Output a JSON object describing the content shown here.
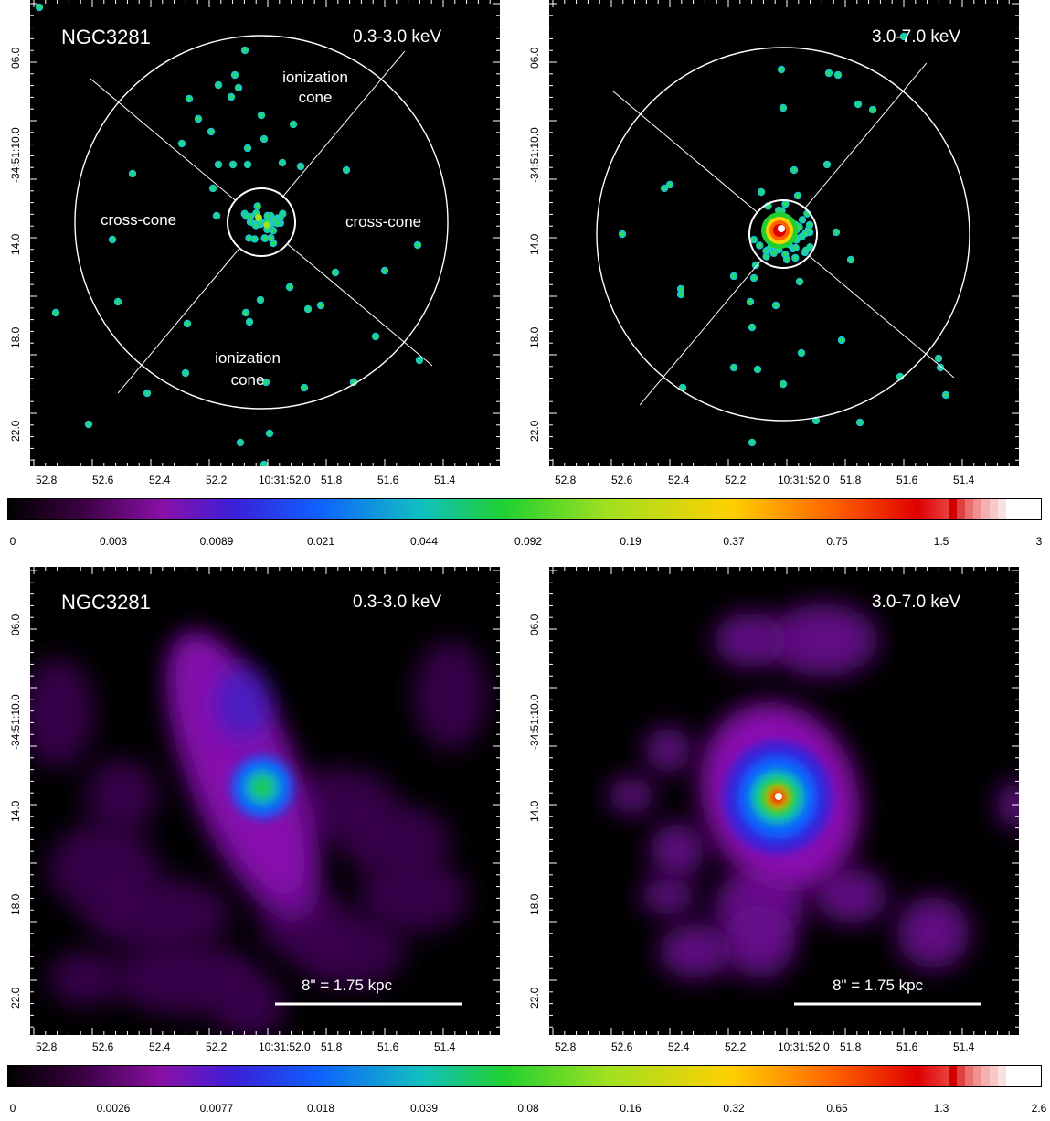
{
  "panels": [
    {
      "id": "top-left",
      "object_label": "NGC3281",
      "band_label": "0.3-3.0 keV",
      "annotations": [
        "ionization\ncone",
        "cross-cone",
        "cross-cone",
        "ionization\ncone"
      ],
      "scale_bar_label": ""
    },
    {
      "id": "top-right",
      "object_label": "",
      "band_label": "3.0-7.0 keV",
      "annotations": [],
      "scale_bar_label": ""
    },
    {
      "id": "bottom-left",
      "object_label": "NGC3281",
      "band_label": "0.3-3.0 keV",
      "annotations": [],
      "scale_bar_label": "8\" = 1.75 kpc"
    },
    {
      "id": "bottom-right",
      "object_label": "",
      "band_label": "3.0-7.0 keV",
      "annotations": [],
      "scale_bar_label": "8\" = 1.75 kpc"
    }
  ],
  "axes": {
    "x_ticks": [
      "52.8",
      "52.6",
      "52.4",
      "52.2",
      "10:31:52.0",
      "51.8",
      "51.6",
      "51.4"
    ],
    "y_ticks": [
      "06.0",
      "-34:51:10.0",
      "14.0",
      "18.0",
      "22.0"
    ]
  },
  "colorbars": [
    {
      "id": "top",
      "labels": [
        "0",
        "0.003",
        "0.0089",
        "0.021",
        "0.044",
        "0.092",
        "0.19",
        "0.37",
        "0.75",
        "1.5",
        "3"
      ]
    },
    {
      "id": "bottom",
      "labels": [
        "0",
        "0.0026",
        "0.0077",
        "0.018",
        "0.039",
        "0.08",
        "0.16",
        "0.32",
        "0.65",
        "1.3",
        "2.6"
      ]
    }
  ],
  "colormap": [
    "#000000",
    "#3a0040",
    "#8a10a8",
    "#3a20d8",
    "#1060ff",
    "#10c0c0",
    "#20d030",
    "#a0e020",
    "#ffd000",
    "#ff6000",
    "#e00000",
    "#ffffff"
  ]
}
